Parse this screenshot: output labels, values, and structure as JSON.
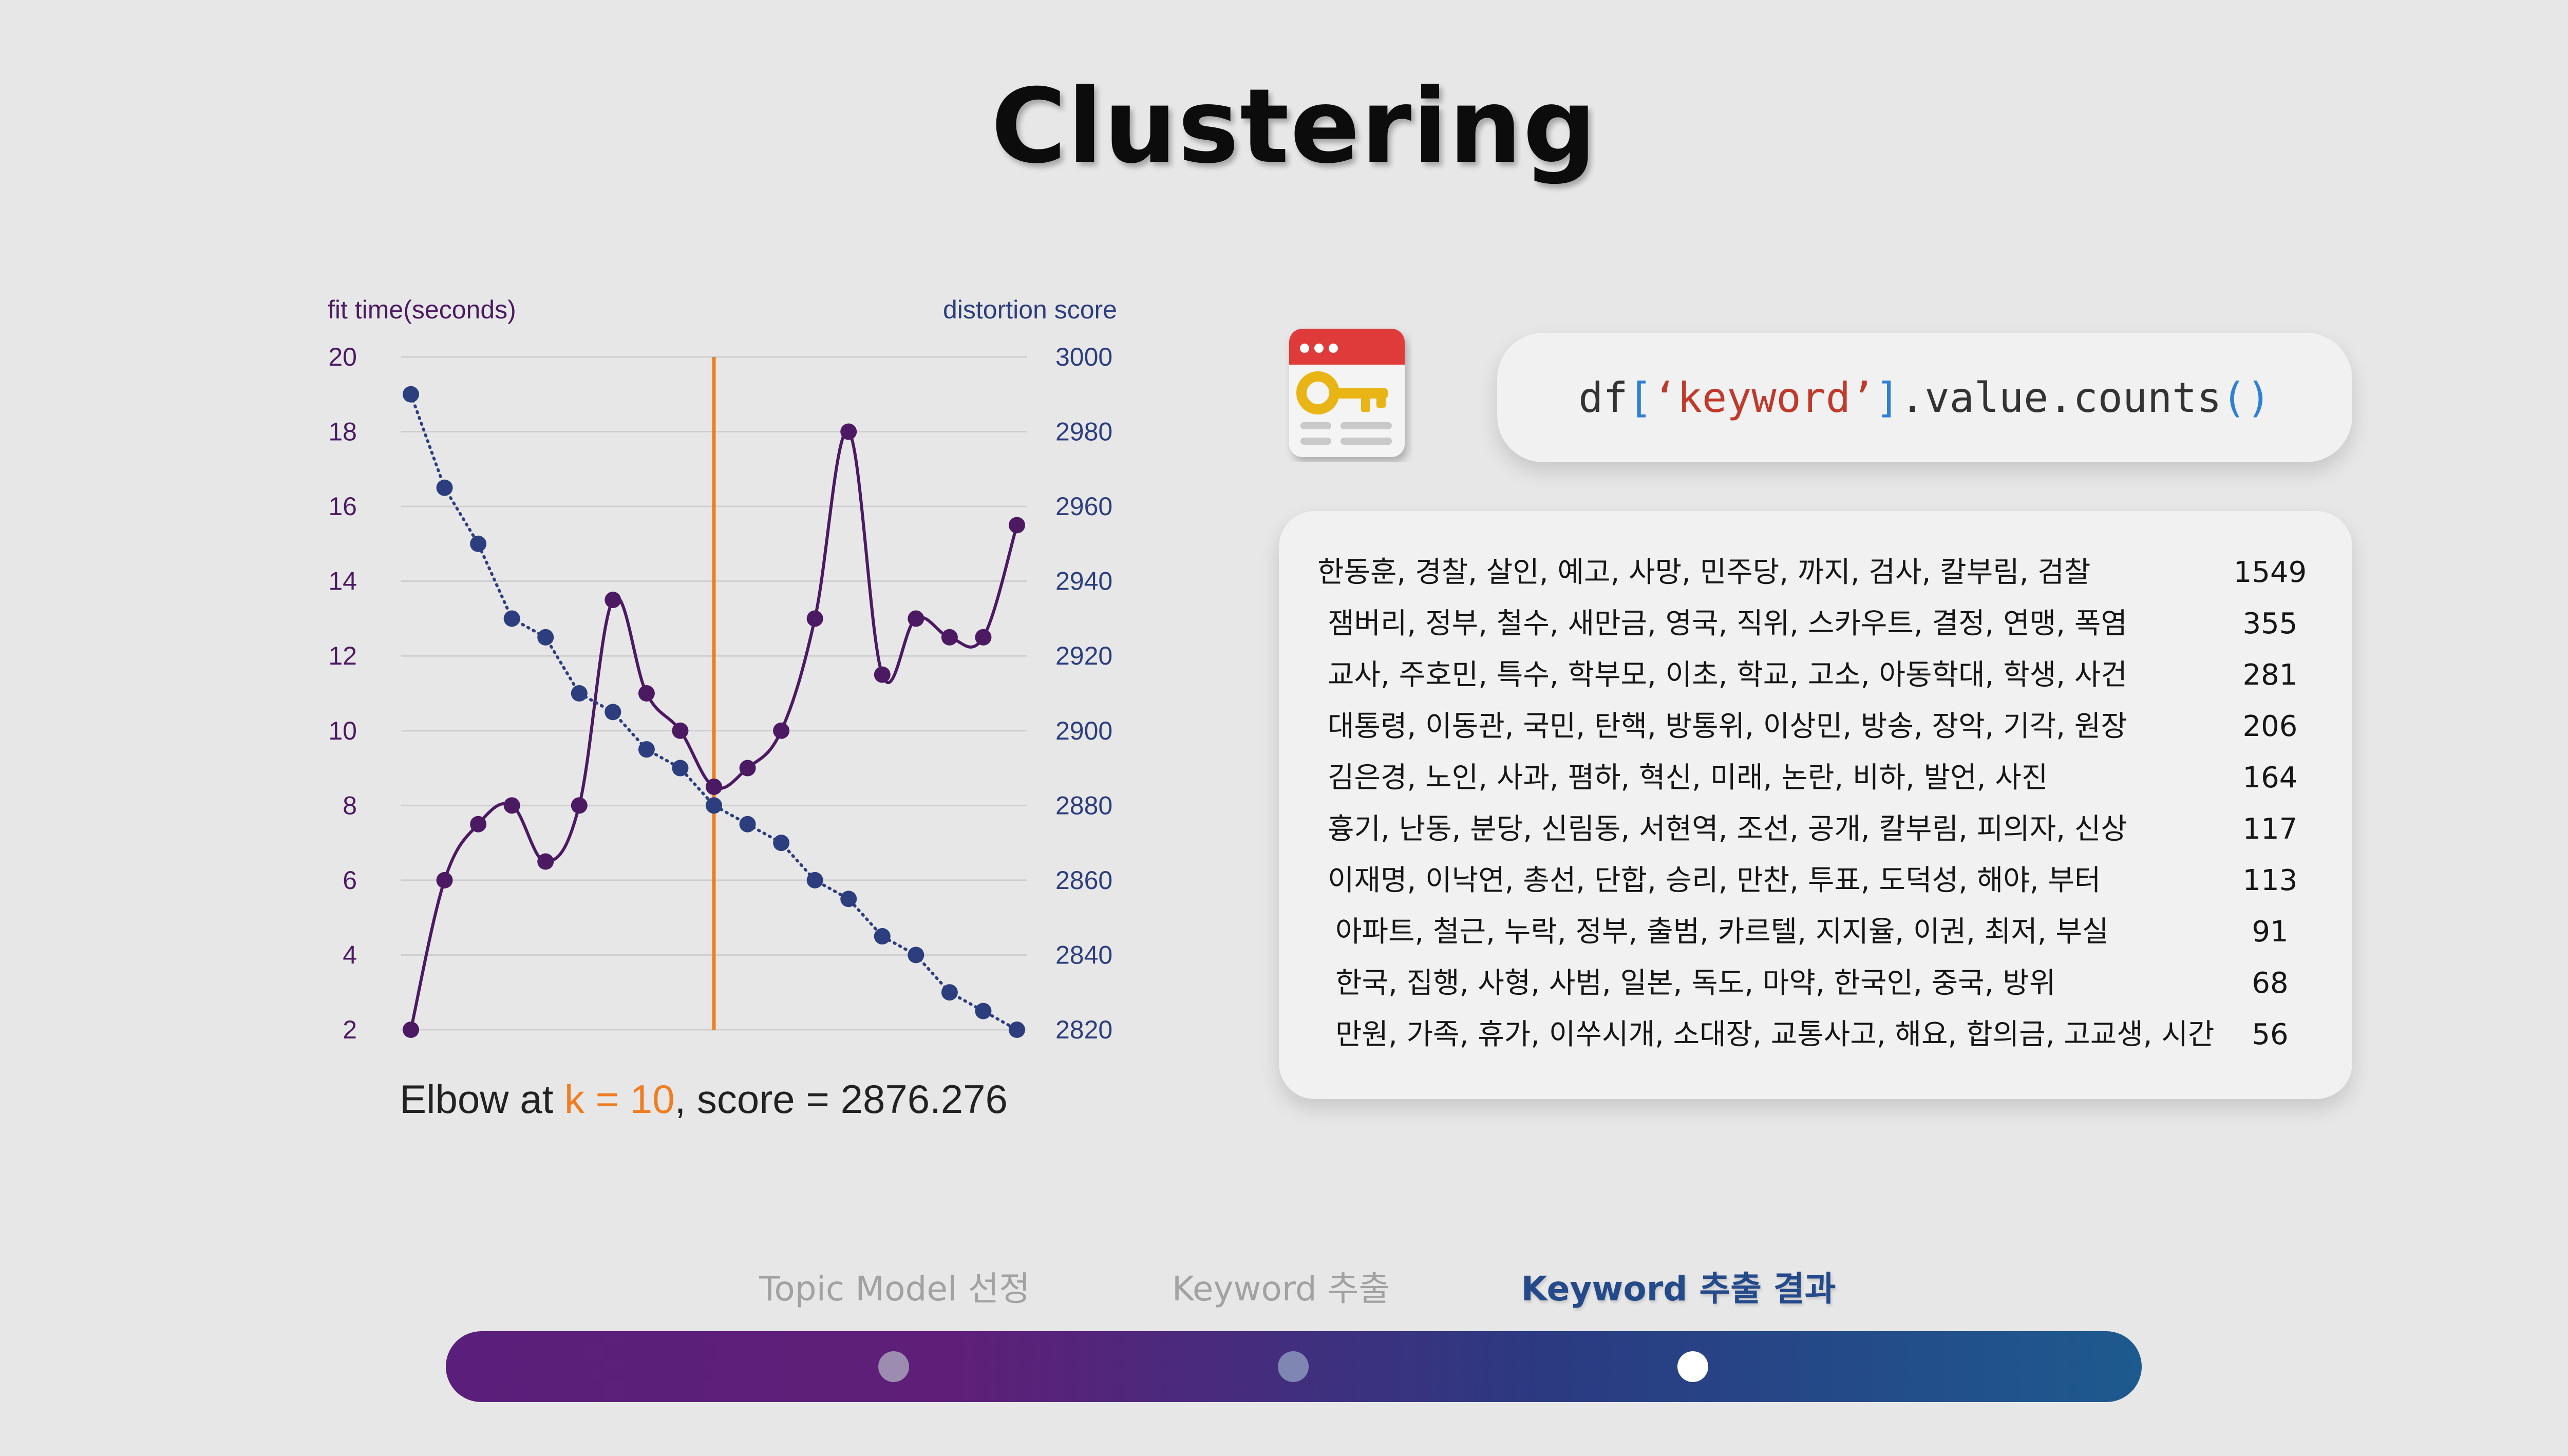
{
  "page": {
    "title": "Clustering"
  },
  "chart_data": {
    "type": "line",
    "left_axis_label": "fit time(seconds)",
    "right_axis_label": "distortion score",
    "left_ticks": [
      "20",
      "18",
      "16",
      "14",
      "12",
      "10",
      "8",
      "6",
      "4",
      "2"
    ],
    "right_ticks": [
      "3000",
      "2980",
      "2960",
      "2940",
      "2920",
      "2900",
      "2880",
      "2860",
      "2840",
      "2820"
    ],
    "left_ylim": [
      2,
      20
    ],
    "right_ylim": [
      2820,
      3000
    ],
    "x": [
      1,
      2,
      3,
      4,
      5,
      6,
      7,
      8,
      9,
      10,
      11,
      12,
      13,
      14,
      15,
      16,
      17,
      18,
      19
    ],
    "elbow_k": 10,
    "series": [
      {
        "name": "fit time",
        "axis": "left",
        "style": "solid",
        "color": "#4c1a63",
        "values": [
          2,
          6,
          7.5,
          8,
          6.5,
          8,
          13.5,
          11,
          10,
          8.5,
          9,
          10,
          13,
          18,
          11.5,
          13,
          12.5,
          12.5,
          15.5
        ]
      },
      {
        "name": "distortion score",
        "axis": "right",
        "style": "dotted",
        "color": "#2c3e7e",
        "values": [
          2990,
          2965,
          2950,
          2930,
          2925,
          2910,
          2905,
          2895,
          2890,
          2880,
          2875,
          2870,
          2860,
          2855,
          2845,
          2840,
          2830,
          2825,
          2820
        ]
      }
    ],
    "elbow_color": "#ef7d22"
  },
  "caption": {
    "prefix": "Elbow at ",
    "k_text": "k = 10",
    "suffix": ", score = 2876.276"
  },
  "code": {
    "prefix": "df",
    "open": "[",
    "string": "‘keyword’",
    "close": "]",
    "method": ".value.counts",
    "parens": "()"
  },
  "icon": {
    "name": "browser-key-icon"
  },
  "keyword_table": {
    "rows": [
      {
        "keywords": "한동훈, 경찰, 살인, 예고, 사망, 민주당, 까지, 검사, 칼부림, 검찰",
        "count": "1549"
      },
      {
        "keywords": "잼버리, 정부, 철수, 새만금, 영국, 직위, 스카우트, 결정, 연맹, 폭염",
        "count": "355"
      },
      {
        "keywords": "교사, 주호민, 특수, 학부모, 이초, 학교, 고소, 아동학대, 학생, 사건",
        "count": "281"
      },
      {
        "keywords": "대통령, 이동관, 국민, 탄핵, 방통위, 이상민, 방송, 장악, 기각, 원장",
        "count": "206"
      },
      {
        "keywords": "김은경, 노인, 사과, 폄하, 혁신, 미래, 논란, 비하, 발언, 사진",
        "count": "164"
      },
      {
        "keywords": "흉기, 난동, 분당, 신림동, 서현역, 조선, 공개, 칼부림, 피의자, 신상",
        "count": "117"
      },
      {
        "keywords": "이재명, 이낙연, 총선, 단합, 승리, 만찬, 투표, 도덕성, 해야, 부터",
        "count": "113"
      },
      {
        "keywords": "아파트, 철근, 누락, 정부, 출범, 카르텔, 지지율, 이권, 최저, 부실",
        "count": "91"
      },
      {
        "keywords": "한국, 집행, 사형, 사범, 일본, 독도, 마약, 한국인, 중국, 방위",
        "count": "68"
      },
      {
        "keywords": "만원, 가족, 휴가, 이쑤시개, 소대장, 교통사고, 해요, 합의금, 고교생, 시간",
        "count": "56"
      }
    ]
  },
  "steps": [
    {
      "label": "Topic Model 선정",
      "state": "inactive"
    },
    {
      "label": "Keyword 추출",
      "state": "inactive"
    },
    {
      "label": "Keyword 추출 결과",
      "state": "active"
    }
  ],
  "colors": {
    "background": "#e7e7e7",
    "left_axis": "#4c1a63",
    "right_axis": "#2c3e7e",
    "accent": "#ef7d22",
    "active_step": "#244a8a"
  }
}
